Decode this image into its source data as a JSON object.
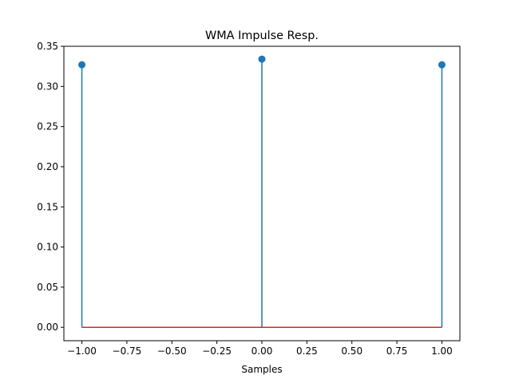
{
  "chart_data": {
    "type": "stem",
    "title": "WMA Impulse Resp.",
    "xlabel": "Samples",
    "ylabel": "",
    "x": [
      -1.0,
      0.0,
      1.0
    ],
    "y": [
      0.327,
      0.334,
      0.327
    ],
    "xlim": [
      -1.1,
      1.1
    ],
    "ylim": [
      -0.0167,
      0.35
    ],
    "xticks": [
      -1.0,
      -0.75,
      -0.5,
      -0.25,
      0.0,
      0.25,
      0.5,
      0.75,
      1.0
    ],
    "xtick_labels": [
      "−1.00",
      "−0.75",
      "−0.50",
      "−0.25",
      "0.00",
      "0.25",
      "0.50",
      "0.75",
      "1.00"
    ],
    "yticks": [
      0.0,
      0.05,
      0.1,
      0.15,
      0.2,
      0.25,
      0.3,
      0.35
    ],
    "ytick_labels": [
      "0.00",
      "0.05",
      "0.10",
      "0.15",
      "0.20",
      "0.25",
      "0.30",
      "0.35"
    ],
    "baseline": 0.0,
    "grid": false,
    "colors": {
      "stem": "#1f77b4",
      "marker": "#1f77b4",
      "baseline": "#d62728",
      "axes": "#000000"
    }
  }
}
